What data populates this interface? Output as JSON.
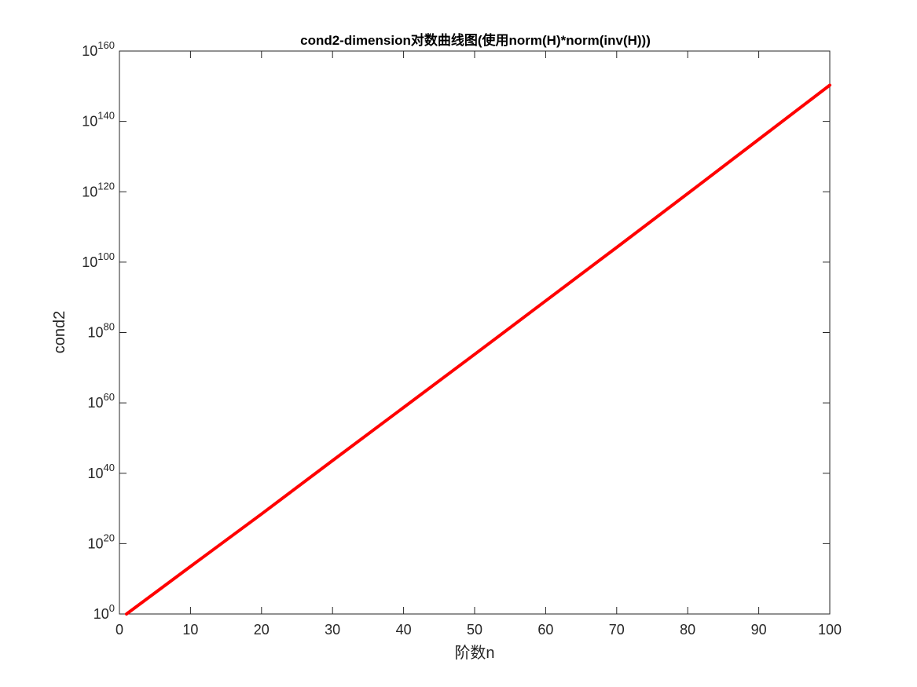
{
  "chart_data": {
    "type": "line",
    "title": "cond2-dimension对数曲线图(使用norm(H)*norm(inv(H)))",
    "xlabel": "阶数n",
    "ylabel": "cond2",
    "xlim": [
      0,
      100
    ],
    "ylim_log10": [
      0,
      160
    ],
    "yscale": "log",
    "x_ticks": [
      "0",
      "10",
      "20",
      "30",
      "40",
      "50",
      "60",
      "70",
      "80",
      "90",
      "100"
    ],
    "y_ticks": [
      {
        "base": "10",
        "exp": "0"
      },
      {
        "base": "10",
        "exp": "20"
      },
      {
        "base": "10",
        "exp": "40"
      },
      {
        "base": "10",
        "exp": "60"
      },
      {
        "base": "10",
        "exp": "80"
      },
      {
        "base": "10",
        "exp": "100"
      },
      {
        "base": "10",
        "exp": "120"
      },
      {
        "base": "10",
        "exp": "140"
      },
      {
        "base": "10",
        "exp": "160"
      }
    ],
    "grid": false,
    "series": [
      {
        "color": "#ff0000",
        "x": [
          1,
          5,
          10,
          20,
          30,
          40,
          50,
          60,
          70,
          80,
          90,
          100
        ],
        "y_log10": [
          0,
          6,
          13.5,
          28.4,
          43.6,
          58.7,
          73.8,
          89,
          104.2,
          119.5,
          134.9,
          150.3
        ]
      }
    ]
  }
}
